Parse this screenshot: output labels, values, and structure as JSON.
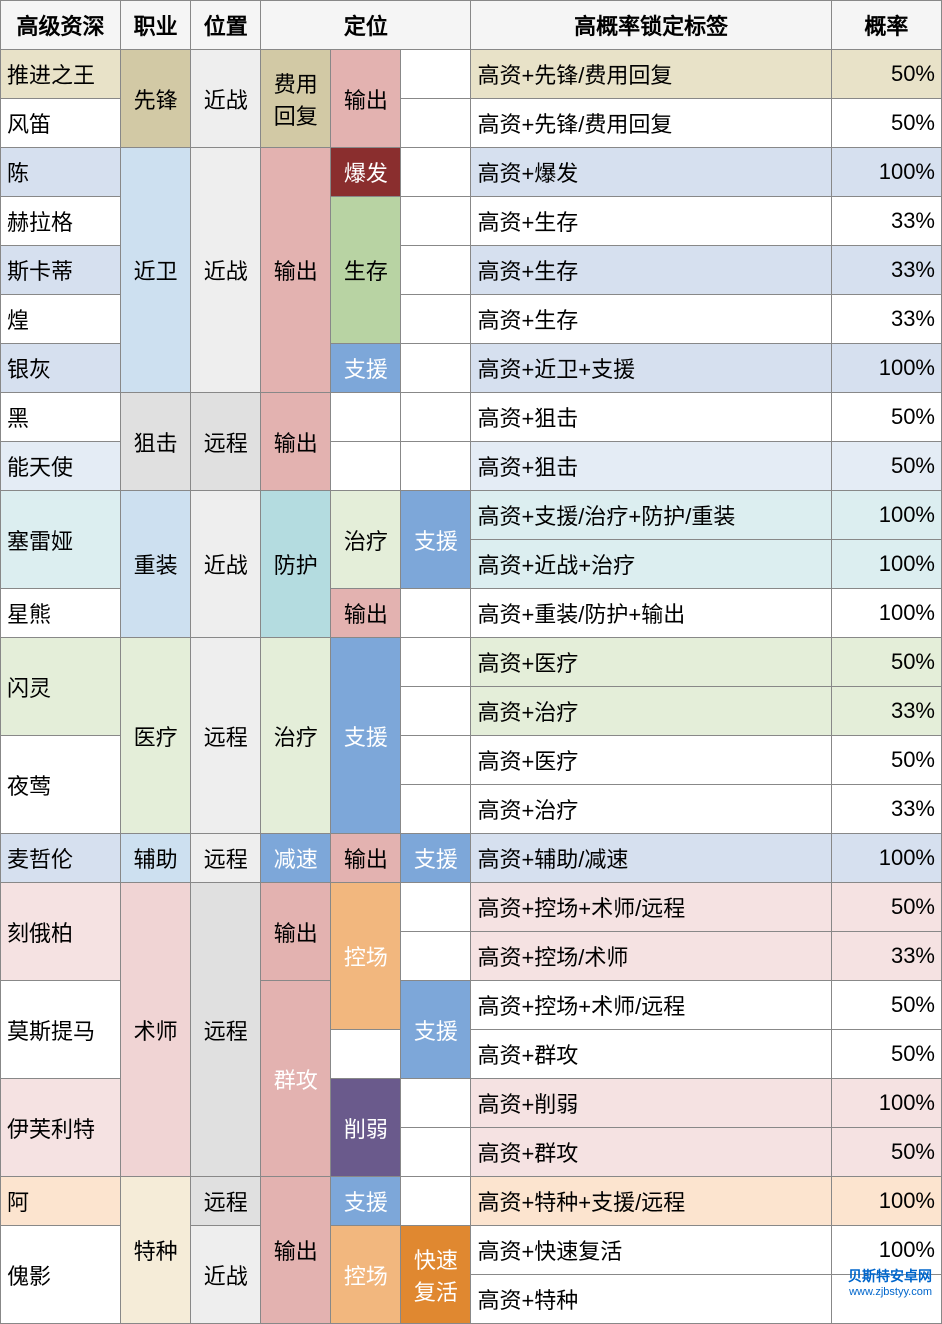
{
  "colors": {
    "tan": "#d2c9a5",
    "tanLight": "#e8e2c8",
    "white": "#ffffff",
    "blueLight": "#d6e0ef",
    "blueLight2": "#e4ecf5",
    "pink": "#e3b2b0",
    "pinkText": "#fff",
    "darkRed": "#8a2e2e",
    "darkRedText": "#ffffff",
    "green": "#b8d3a3",
    "greenLight": "#e4eed9",
    "blue": "#7da7d9",
    "blueText": "#ffffff",
    "ltblue": "#cde0f0",
    "cyan": "#b4dce0",
    "cyanLight": "#dceef0",
    "grayLt": "#eeeeee",
    "gray2": "#e0e0e0",
    "pinkBg": "#f0d4d4",
    "pinkBg2": "#f5e2e2",
    "orange": "#f2b77e",
    "orangeText": "#fff",
    "purple": "#6a5a8c",
    "purpleText": "#ffffff",
    "orangeBr": "#e08830",
    "tanBg": "#f5ecd8",
    "peach": "#fce4cf"
  },
  "headers": [
    "高级资深",
    "职业",
    "位置",
    "定位",
    "",
    "",
    "高概率锁定标签",
    "概率"
  ],
  "rows": [
    {
      "c0": {
        "t": "推进之王",
        "bg": "tanLight"
      },
      "c1": {
        "t": "先锋",
        "rs": 2,
        "bg": "tan",
        "al": "center"
      },
      "c2": {
        "t": "近战",
        "rs": 2,
        "bg": "grayLt",
        "al": "center"
      },
      "c3": {
        "t": "费用回复",
        "rs": 2,
        "bg": "tan",
        "al": "center"
      },
      "c4": {
        "t": "输出",
        "rs": 2,
        "bg": "pink",
        "al": "center"
      },
      "c5": {
        "t": "",
        "bg": "white"
      },
      "c6": {
        "t": "高资+先锋/费用回复",
        "bg": "tanLight"
      },
      "c7": {
        "t": "50%",
        "bg": "tanLight",
        "al": "right"
      }
    },
    {
      "c0": {
        "t": "风笛",
        "bg": "white"
      },
      "c5": {
        "t": "",
        "bg": "white"
      },
      "c6": {
        "t": "高资+先锋/费用回复",
        "bg": "white"
      },
      "c7": {
        "t": "50%",
        "bg": "white",
        "al": "right"
      }
    },
    {
      "c0": {
        "t": "陈",
        "bg": "blueLight"
      },
      "c1": {
        "t": "近卫",
        "rs": 5,
        "bg": "ltblue",
        "al": "center"
      },
      "c2": {
        "t": "近战",
        "rs": 5,
        "bg": "grayLt",
        "al": "center"
      },
      "c3": {
        "t": "输出",
        "rs": 5,
        "bg": "pink",
        "al": "center"
      },
      "c4": {
        "t": "爆发",
        "bg": "darkRed",
        "fg": "darkRedText",
        "al": "center"
      },
      "c5": {
        "t": "",
        "bg": "white"
      },
      "c6": {
        "t": "高资+爆发",
        "bg": "blueLight"
      },
      "c7": {
        "t": "100%",
        "bg": "blueLight",
        "al": "right"
      }
    },
    {
      "c0": {
        "t": "赫拉格",
        "bg": "white"
      },
      "c4": {
        "t": "生存",
        "rs": 3,
        "bg": "green",
        "al": "center"
      },
      "c5": {
        "t": "",
        "bg": "white"
      },
      "c6": {
        "t": "高资+生存",
        "bg": "white"
      },
      "c7": {
        "t": "33%",
        "bg": "white",
        "al": "right"
      }
    },
    {
      "c0": {
        "t": "斯卡蒂",
        "bg": "blueLight"
      },
      "c5": {
        "t": "",
        "bg": "white"
      },
      "c6": {
        "t": "高资+生存",
        "bg": "blueLight"
      },
      "c7": {
        "t": "33%",
        "bg": "blueLight",
        "al": "right"
      }
    },
    {
      "c0": {
        "t": "煌",
        "bg": "white"
      },
      "c5": {
        "t": "",
        "bg": "white"
      },
      "c6": {
        "t": "高资+生存",
        "bg": "white"
      },
      "c7": {
        "t": "33%",
        "bg": "white",
        "al": "right"
      }
    },
    {
      "c0": {
        "t": "银灰",
        "bg": "blueLight"
      },
      "c4": {
        "t": "支援",
        "bg": "blue",
        "fg": "blueText",
        "al": "center"
      },
      "c5": {
        "t": "",
        "bg": "white"
      },
      "c6": {
        "t": "高资+近卫+支援",
        "bg": "blueLight"
      },
      "c7": {
        "t": "100%",
        "bg": "blueLight",
        "al": "right"
      }
    },
    {
      "c0": {
        "t": "黑",
        "bg": "white"
      },
      "c1": {
        "t": "狙击",
        "rs": 2,
        "bg": "gray2",
        "al": "center"
      },
      "c2": {
        "t": "远程",
        "rs": 2,
        "bg": "gray2",
        "al": "center"
      },
      "c3": {
        "t": "输出",
        "rs": 2,
        "bg": "pink",
        "al": "center"
      },
      "c4": {
        "t": "",
        "bg": "white"
      },
      "c5": {
        "t": "",
        "bg": "white"
      },
      "c6": {
        "t": "高资+狙击",
        "bg": "white"
      },
      "c7": {
        "t": "50%",
        "bg": "white",
        "al": "right"
      }
    },
    {
      "c0": {
        "t": "能天使",
        "bg": "blueLight2"
      },
      "c4": {
        "t": "",
        "bg": "white"
      },
      "c5": {
        "t": "",
        "bg": "white"
      },
      "c6": {
        "t": "高资+狙击",
        "bg": "blueLight2"
      },
      "c7": {
        "t": "50%",
        "bg": "blueLight2",
        "al": "right"
      }
    },
    {
      "c0": {
        "t": "塞雷娅",
        "rs": 2,
        "bg": "cyanLight"
      },
      "c1": {
        "t": "重装",
        "rs": 3,
        "bg": "ltblue",
        "al": "center"
      },
      "c2": {
        "t": "近战",
        "rs": 3,
        "bg": "grayLt",
        "al": "center"
      },
      "c3": {
        "t": "防护",
        "rs": 3,
        "bg": "cyan",
        "al": "center"
      },
      "c4": {
        "t": "治疗",
        "rs": 2,
        "bg": "greenLight",
        "al": "center"
      },
      "c5": {
        "t": "支援",
        "rs": 2,
        "bg": "blue",
        "fg": "blueText",
        "al": "center"
      },
      "c6": {
        "t": "高资+支援/治疗+防护/重装",
        "bg": "cyanLight"
      },
      "c7": {
        "t": "100%",
        "bg": "cyanLight",
        "al": "right"
      }
    },
    {
      "c6": {
        "t": "高资+近战+治疗",
        "bg": "cyanLight"
      },
      "c7": {
        "t": "100%",
        "bg": "cyanLight",
        "al": "right"
      }
    },
    {
      "c0": {
        "t": "星熊",
        "bg": "white"
      },
      "c4": {
        "t": "输出",
        "bg": "pink",
        "al": "center"
      },
      "c5": {
        "t": "",
        "bg": "white"
      },
      "c6": {
        "t": "高资+重装/防护+输出",
        "bg": "white"
      },
      "c7": {
        "t": "100%",
        "bg": "white",
        "al": "right"
      }
    },
    {
      "c0": {
        "t": "闪灵",
        "rs": 2,
        "bg": "greenLight"
      },
      "c1": {
        "t": "医疗",
        "rs": 4,
        "bg": "greenLight",
        "al": "center"
      },
      "c2": {
        "t": "远程",
        "rs": 4,
        "bg": "grayLt",
        "al": "center"
      },
      "c3": {
        "t": "治疗",
        "rs": 4,
        "bg": "greenLight",
        "al": "center"
      },
      "c4": {
        "t": "支援",
        "rs": 4,
        "bg": "blue",
        "fg": "blueText",
        "al": "center"
      },
      "c5": {
        "t": "",
        "bg": "white"
      },
      "c6": {
        "t": "高资+医疗",
        "bg": "greenLight"
      },
      "c7": {
        "t": "50%",
        "bg": "greenLight",
        "al": "right"
      }
    },
    {
      "c5": {
        "t": "",
        "bg": "white"
      },
      "c6": {
        "t": "高资+治疗",
        "bg": "greenLight"
      },
      "c7": {
        "t": "33%",
        "bg": "greenLight",
        "al": "right"
      }
    },
    {
      "c0": {
        "t": "夜莺",
        "rs": 2,
        "bg": "white"
      },
      "c5": {
        "t": "",
        "bg": "white"
      },
      "c6": {
        "t": "高资+医疗",
        "bg": "white"
      },
      "c7": {
        "t": "50%",
        "bg": "white",
        "al": "right"
      }
    },
    {
      "c5": {
        "t": "",
        "bg": "white"
      },
      "c6": {
        "t": "高资+治疗",
        "bg": "white"
      },
      "c7": {
        "t": "33%",
        "bg": "white",
        "al": "right"
      }
    },
    {
      "c0": {
        "t": "麦哲伦",
        "bg": "blueLight"
      },
      "c1": {
        "t": "辅助",
        "bg": "ltblue",
        "al": "center"
      },
      "c2": {
        "t": "远程",
        "bg": "grayLt",
        "al": "center"
      },
      "c3": {
        "t": "减速",
        "bg": "blue",
        "fg": "blueText",
        "al": "center"
      },
      "c4": {
        "t": "输出",
        "bg": "pink",
        "al": "center"
      },
      "c5": {
        "t": "支援",
        "bg": "blue",
        "fg": "blueText",
        "al": "center"
      },
      "c6": {
        "t": "高资+辅助/减速",
        "bg": "blueLight"
      },
      "c7": {
        "t": "100%",
        "bg": "blueLight",
        "al": "right"
      }
    },
    {
      "c0": {
        "t": "刻俄柏",
        "rs": 2,
        "bg": "pinkBg2"
      },
      "c1": {
        "t": "术师",
        "rs": 6,
        "bg": "pinkBg",
        "al": "center"
      },
      "c2": {
        "t": "远程",
        "rs": 6,
        "bg": "gray2",
        "al": "center"
      },
      "c3": {
        "t": "输出",
        "rs": 2,
        "bg": "pink",
        "al": "center"
      },
      "c4": {
        "t": "控场",
        "rs": 3,
        "bg": "orange",
        "fg": "orangeText",
        "al": "center"
      },
      "c5": {
        "t": "",
        "bg": "white"
      },
      "c6": {
        "t": "高资+控场+术师/远程",
        "bg": "pinkBg2"
      },
      "c7": {
        "t": "50%",
        "bg": "pinkBg2",
        "al": "right"
      }
    },
    {
      "c5": {
        "t": "",
        "bg": "white"
      },
      "c6": {
        "t": "高资+控场/术师",
        "bg": "pinkBg2"
      },
      "c7": {
        "t": "33%",
        "bg": "pinkBg2",
        "al": "right"
      }
    },
    {
      "c0": {
        "t": "莫斯提马",
        "rs": 2,
        "bg": "white"
      },
      "c3": {
        "t": "群攻",
        "rs": 4,
        "bg": "pink",
        "fg": "pinkText",
        "al": "center"
      },
      "c5": {
        "t": "支援",
        "rs": 2,
        "bg": "blue",
        "fg": "blueText",
        "al": "center"
      },
      "c6": {
        "t": "高资+控场+术师/远程",
        "bg": "white"
      },
      "c7": {
        "t": "50%",
        "bg": "white",
        "al": "right"
      }
    },
    {
      "c4": {
        "t": "",
        "bg": "white"
      },
      "c6": {
        "t": "高资+群攻",
        "bg": "white"
      },
      "c7": {
        "t": "50%",
        "bg": "white",
        "al": "right"
      }
    },
    {
      "c0": {
        "t": "伊芙利特",
        "rs": 2,
        "bg": "pinkBg2"
      },
      "c4": {
        "t": "削弱",
        "rs": 2,
        "bg": "purple",
        "fg": "purpleText",
        "al": "center"
      },
      "c5": {
        "t": "",
        "bg": "white"
      },
      "c6": {
        "t": "高资+削弱",
        "bg": "pinkBg2"
      },
      "c7": {
        "t": "100%",
        "bg": "pinkBg2",
        "al": "right"
      }
    },
    {
      "c5": {
        "t": "",
        "bg": "white"
      },
      "c6": {
        "t": "高资+群攻",
        "bg": "pinkBg2"
      },
      "c7": {
        "t": "50%",
        "bg": "pinkBg2",
        "al": "right"
      }
    },
    {
      "c0": {
        "t": "阿",
        "bg": "peach"
      },
      "c1": {
        "t": "特种",
        "rs": 3,
        "bg": "tanBg",
        "al": "center"
      },
      "c2": {
        "t": "远程",
        "bg": "gray2",
        "al": "center"
      },
      "c3": {
        "t": "输出",
        "rs": 3,
        "bg": "pink",
        "al": "center"
      },
      "c4": {
        "t": "支援",
        "bg": "blue",
        "fg": "blueText",
        "al": "center"
      },
      "c5": {
        "t": "",
        "bg": "white"
      },
      "c6": {
        "t": "高资+特种+支援/远程",
        "bg": "peach"
      },
      "c7": {
        "t": "100%",
        "bg": "peach",
        "al": "right"
      }
    },
    {
      "c0": {
        "t": "傀影",
        "rs": 2,
        "bg": "white"
      },
      "c2": {
        "t": "近战",
        "rs": 2,
        "bg": "grayLt",
        "al": "center"
      },
      "c4": {
        "t": "控场",
        "rs": 2,
        "bg": "orange",
        "fg": "orangeText",
        "al": "center"
      },
      "c5": {
        "t": "快速复活",
        "rs": 2,
        "bg": "orangeBr",
        "fg": "orangeText",
        "al": "center"
      },
      "c6": {
        "t": "高资+快速复活",
        "bg": "white"
      },
      "c7": {
        "t": "100%",
        "bg": "white",
        "al": "right"
      }
    },
    {
      "c6": {
        "t": "高资+特种",
        "bg": "white"
      },
      "c7": {
        "t": "",
        "bg": "white",
        "al": "right"
      }
    }
  ],
  "watermark": {
    "l1": "贝斯特安卓网",
    "l2": "www.zjbstyy.com"
  },
  "colWidths": [
    "120",
    "70",
    "70",
    "70",
    "70",
    "70",
    "360",
    "110"
  ],
  "headerColspan": {
    "3": 3
  }
}
